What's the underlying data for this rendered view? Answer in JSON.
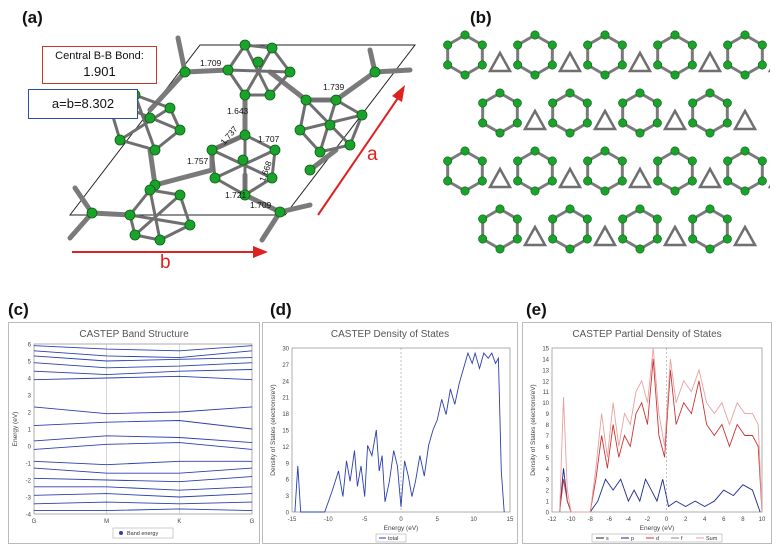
{
  "panels": {
    "a": {
      "label": "(a)"
    },
    "b": {
      "label": "(b)"
    },
    "c": {
      "label": "(c)"
    },
    "d": {
      "label": "(d)"
    },
    "e": {
      "label": "(e)"
    }
  },
  "structure": {
    "bond_box": {
      "title": "Central B-B Bond:",
      "value": "1.901"
    },
    "lattice_box": {
      "text": "a=b=8.302"
    },
    "axis_a": "a",
    "axis_b": "b",
    "bond_lengths": [
      "1.709",
      "1.739",
      "1.643",
      "1.737",
      "1.707",
      "1.757",
      "1.668",
      "1.721",
      "1.709"
    ],
    "colors": {
      "atom": "#1aa32a",
      "bond": "#777777",
      "arrow": "#dd2222",
      "cell": "#222222"
    }
  },
  "chart_data": [
    {
      "type": "line",
      "title": "CASTEP Band Structure",
      "ylabel": "Energy (eV)",
      "ylim": [
        -4,
        6
      ],
      "yticks": [
        "6",
        "5",
        "4",
        "3",
        "2",
        "1",
        "0",
        "-1",
        "-2",
        "-3",
        "-4"
      ],
      "xticks": [
        "G",
        "M",
        "K",
        "G"
      ],
      "legend": [
        "Band energy"
      ],
      "series": [
        {
          "values": [
            5.9,
            5.7,
            5.6,
            5.9
          ]
        },
        {
          "values": [
            5.6,
            5.3,
            5.2,
            5.6
          ]
        },
        {
          "values": [
            5.3,
            5.0,
            5.1,
            5.2
          ]
        },
        {
          "values": [
            4.9,
            4.6,
            4.7,
            4.9
          ]
        },
        {
          "values": [
            4.4,
            4.2,
            4.4,
            4.5
          ]
        },
        {
          "values": [
            3.9,
            4.0,
            4.1,
            3.9
          ]
        },
        {
          "values": [
            2.3,
            1.9,
            2.0,
            2.3
          ]
        },
        {
          "values": [
            1.2,
            1.4,
            1.5,
            1.0
          ]
        },
        {
          "values": [
            0.3,
            0.6,
            0.5,
            0.2
          ]
        },
        {
          "values": [
            -0.2,
            0.1,
            0.2,
            -0.2
          ]
        },
        {
          "values": [
            -0.9,
            -1.1,
            -0.9,
            -0.9
          ]
        },
        {
          "values": [
            -1.3,
            -1.6,
            -1.6,
            -1.3
          ]
        },
        {
          "values": [
            -1.9,
            -2.0,
            -2.1,
            -1.8
          ]
        },
        {
          "values": [
            -2.4,
            -2.4,
            -2.6,
            -2.4
          ]
        },
        {
          "values": [
            -2.9,
            -2.8,
            -3.0,
            -2.8
          ]
        },
        {
          "values": [
            -3.4,
            -3.3,
            -3.4,
            -3.3
          ]
        },
        {
          "values": [
            -3.8,
            -3.8,
            -3.7,
            -3.8
          ]
        }
      ]
    },
    {
      "type": "line",
      "title": "CASTEP Density of States",
      "xlabel": "Energy (eV)",
      "ylabel": "Density of States (electrons/eV)",
      "xlim": [
        -15,
        15
      ],
      "ylim": [
        0,
        32
      ],
      "xticks": [
        "-15",
        "-10",
        "-5",
        "0",
        "5",
        "10",
        "15"
      ],
      "yticks": [
        "0",
        "3",
        "6",
        "9",
        "12",
        "15",
        "18",
        "21",
        "24",
        "27",
        "30"
      ],
      "legend": [
        "total"
      ],
      "series": [
        {
          "name": "total",
          "x": [
            -14.6,
            -14.2,
            -13.8,
            -13.4,
            -12.0,
            -10.5,
            -9.5,
            -8.6,
            -8.0,
            -7.5,
            -7.0,
            -6.4,
            -6.0,
            -5.5,
            -5.0,
            -4.6,
            -4.0,
            -3.4,
            -3.0,
            -2.6,
            -2.2,
            -1.6,
            -1.0,
            -0.5,
            0.0,
            0.5,
            1.0,
            1.5,
            2.0,
            2.6,
            3.2,
            3.8,
            4.4,
            5.0,
            5.6,
            6.2,
            6.8,
            7.4,
            8.0,
            8.6,
            9.2,
            9.8,
            10.2,
            10.8,
            11.4,
            12.0,
            12.5,
            13.0,
            13.4,
            13.8,
            14.2
          ],
          "values": [
            0,
            9,
            0,
            0,
            0,
            0,
            4,
            8,
            3,
            10,
            6,
            12,
            5,
            9,
            3,
            13,
            11,
            16,
            8,
            11,
            2,
            6,
            12,
            9,
            1,
            10,
            7,
            3,
            6,
            11,
            7,
            13,
            16,
            18,
            22,
            19,
            24,
            21,
            25,
            28,
            31,
            29,
            31,
            28,
            31,
            30,
            31,
            29,
            30,
            8,
            0
          ]
        }
      ]
    },
    {
      "type": "line",
      "title": "CASTEP Partial  Density of States",
      "xlabel": "Energy (eV)",
      "ylabel": "Density of States (electrons/eV)",
      "xlim": [
        -12,
        10
      ],
      "ylim": [
        0,
        15
      ],
      "xticks": [
        "-12",
        "-10",
        "-8",
        "-6",
        "-4",
        "-2",
        "0",
        "2",
        "4",
        "6",
        "8",
        "10"
      ],
      "yticks": [
        "0",
        "1",
        "2",
        "3",
        "4",
        "5",
        "6",
        "7",
        "8",
        "9",
        "10",
        "11",
        "12",
        "13",
        "14",
        "15"
      ],
      "legend": [
        "s",
        "p",
        "d",
        "f",
        "Sum"
      ],
      "colors": {
        "s": "#1a2a8a",
        "p": "#cc3333",
        "Sum": "#e8a0a0"
      },
      "series": [
        {
          "name": "s",
          "x": [
            -11.2,
            -10.8,
            -10.4,
            -10.0,
            -9.0,
            -8.0,
            -7.2,
            -6.4,
            -5.6,
            -4.8,
            -4.0,
            -3.4,
            -2.8,
            -2.2,
            -1.6,
            -1.0,
            -0.4,
            0.2,
            1.0,
            2.0,
            3.0,
            4.0,
            5.0,
            6.0,
            7.0,
            8.0,
            9.0,
            9.8
          ],
          "values": [
            0,
            4,
            1,
            0,
            0,
            0,
            1,
            3,
            2,
            3,
            1,
            2,
            1,
            3,
            2,
            1,
            3,
            0.5,
            1,
            0.5,
            1,
            0.5,
            1,
            2,
            1.5,
            2.5,
            2,
            0
          ]
        },
        {
          "name": "p",
          "x": [
            -11.2,
            -10.8,
            -10.4,
            -10.0,
            -9.0,
            -8.0,
            -7.4,
            -6.8,
            -6.2,
            -5.6,
            -5.0,
            -4.4,
            -3.8,
            -3.2,
            -2.6,
            -2.0,
            -1.4,
            -0.8,
            -0.2,
            0.4,
            1.0,
            1.8,
            2.6,
            3.4,
            4.2,
            5.0,
            5.8,
            6.6,
            7.4,
            8.2,
            9.0,
            9.6,
            10.0
          ],
          "values": [
            0,
            3,
            1,
            0,
            0,
            0,
            3,
            7,
            4,
            8,
            5,
            7,
            6,
            9,
            10,
            8,
            14,
            7,
            5,
            13,
            8,
            10,
            9,
            12,
            8,
            7,
            8,
            6,
            8,
            7,
            7,
            6,
            0
          ]
        },
        {
          "name": "Sum",
          "x": [
            -11.2,
            -10.8,
            -10.4,
            -10.0,
            -9.0,
            -8.0,
            -7.4,
            -6.8,
            -6.2,
            -5.6,
            -5.0,
            -4.4,
            -3.8,
            -3.2,
            -2.6,
            -2.0,
            -1.4,
            -0.8,
            -0.2,
            0.4,
            1.0,
            1.8,
            2.6,
            3.4,
            4.2,
            5.0,
            5.8,
            6.6,
            7.4,
            8.2,
            9.0,
            9.6,
            10.0
          ],
          "values": [
            0,
            10.5,
            2,
            0,
            0,
            0,
            4,
            9,
            5,
            10,
            6,
            9,
            8,
            11,
            12,
            10,
            15,
            9,
            6,
            14,
            10,
            12,
            11,
            13,
            10,
            9,
            10,
            8,
            10,
            9,
            9,
            8,
            0
          ]
        }
      ]
    }
  ]
}
